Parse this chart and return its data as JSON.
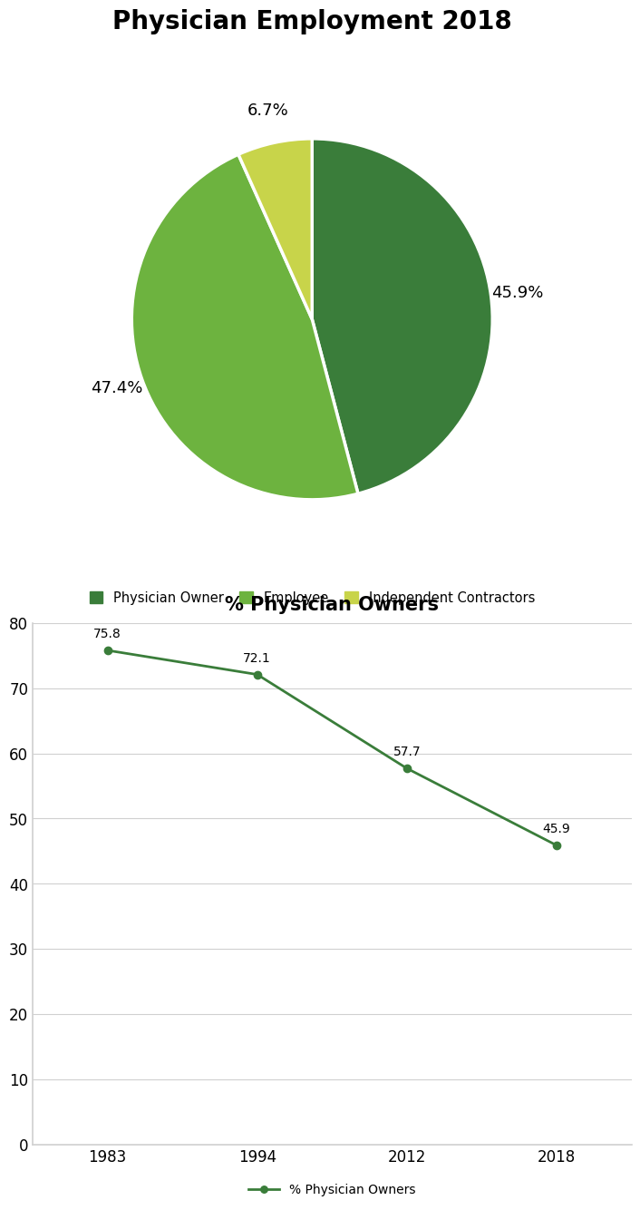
{
  "pie_title": "Physician Employment 2018",
  "pie_labels": [
    "Physician Owner",
    "Employee",
    "Independent Contractors"
  ],
  "pie_values": [
    45.9,
    47.4,
    6.7
  ],
  "pie_colors": [
    "#3a7d3a",
    "#6db33f",
    "#c8d44a"
  ],
  "pie_label_texts": [
    "45.9%",
    "47.4%",
    "6.7%"
  ],
  "line_title": "% Physician Owners",
  "line_years": [
    "1983",
    "1994",
    "2012",
    "2018"
  ],
  "line_values": [
    75.8,
    72.1,
    57.7,
    45.9
  ],
  "line_color": "#3a7d3a",
  "line_label": "% Physician Owners",
  "line_ylim": [
    0,
    80
  ],
  "line_yticks": [
    0,
    10,
    20,
    30,
    40,
    50,
    60,
    70,
    80
  ],
  "legend_labels": [
    "Physician Owner",
    "Employee",
    "Independent Contractors"
  ],
  "legend_colors": [
    "#3a7d3a",
    "#6db33f",
    "#c8d44a"
  ],
  "background_color": "#ffffff",
  "border_color": "#aaaaaa",
  "title_fontsize": 20,
  "line_title_fontsize": 15,
  "label_fontsize": 13,
  "tick_fontsize": 12
}
